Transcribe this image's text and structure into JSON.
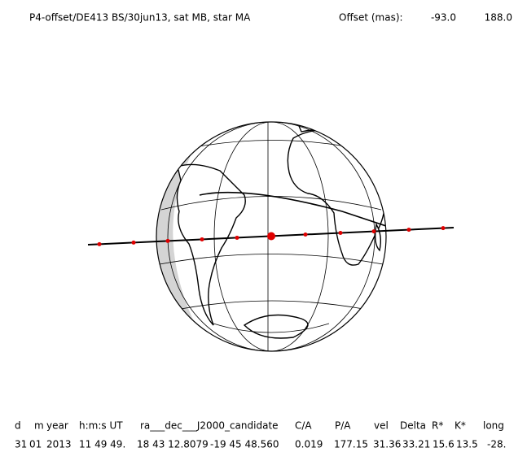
{
  "header": {
    "title": "P4-offset/DE413 BS/30jun13, sat MB, star MA",
    "offset_label": "Offset (mas):",
    "offset_values": [
      "-93.0",
      "188.0"
    ]
  },
  "table": {
    "header": [
      "d",
      "m",
      "year",
      "h:m:s UT",
      "ra___dec___J2000_candidate",
      "C/A",
      "P/A",
      "vel",
      "Delta",
      "R*",
      "K*",
      "long"
    ],
    "values": [
      "31",
      "01",
      "2013",
      "11 49 49.",
      "18 43 12.8079",
      "-19 45  48.560",
      "0.019",
      "177.15",
      "31.36",
      "33.21",
      "15.6",
      "13.5",
      "-28."
    ]
  }
}
